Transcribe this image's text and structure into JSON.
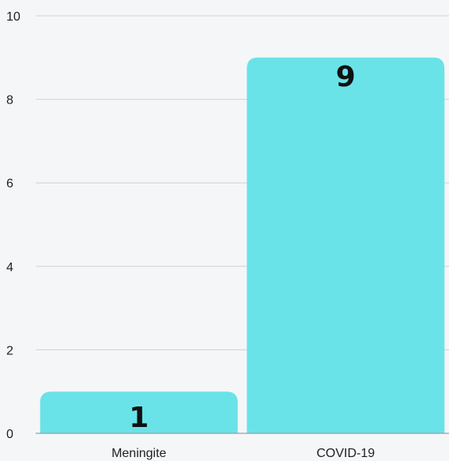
{
  "chart_data": {
    "type": "bar",
    "categories": [
      "Meningite",
      "COVID-19"
    ],
    "values": [
      1,
      9
    ],
    "data_labels": [
      "1",
      "9"
    ],
    "ylim": [
      0,
      10
    ],
    "y_ticks": [
      0,
      2,
      4,
      6,
      8,
      10
    ],
    "y_tick_labels": [
      "0",
      "2",
      "4",
      "6",
      "8",
      "10"
    ],
    "grid": true,
    "bar_color": "#69e3e8",
    "title": "",
    "xlabel": "",
    "ylabel": ""
  }
}
